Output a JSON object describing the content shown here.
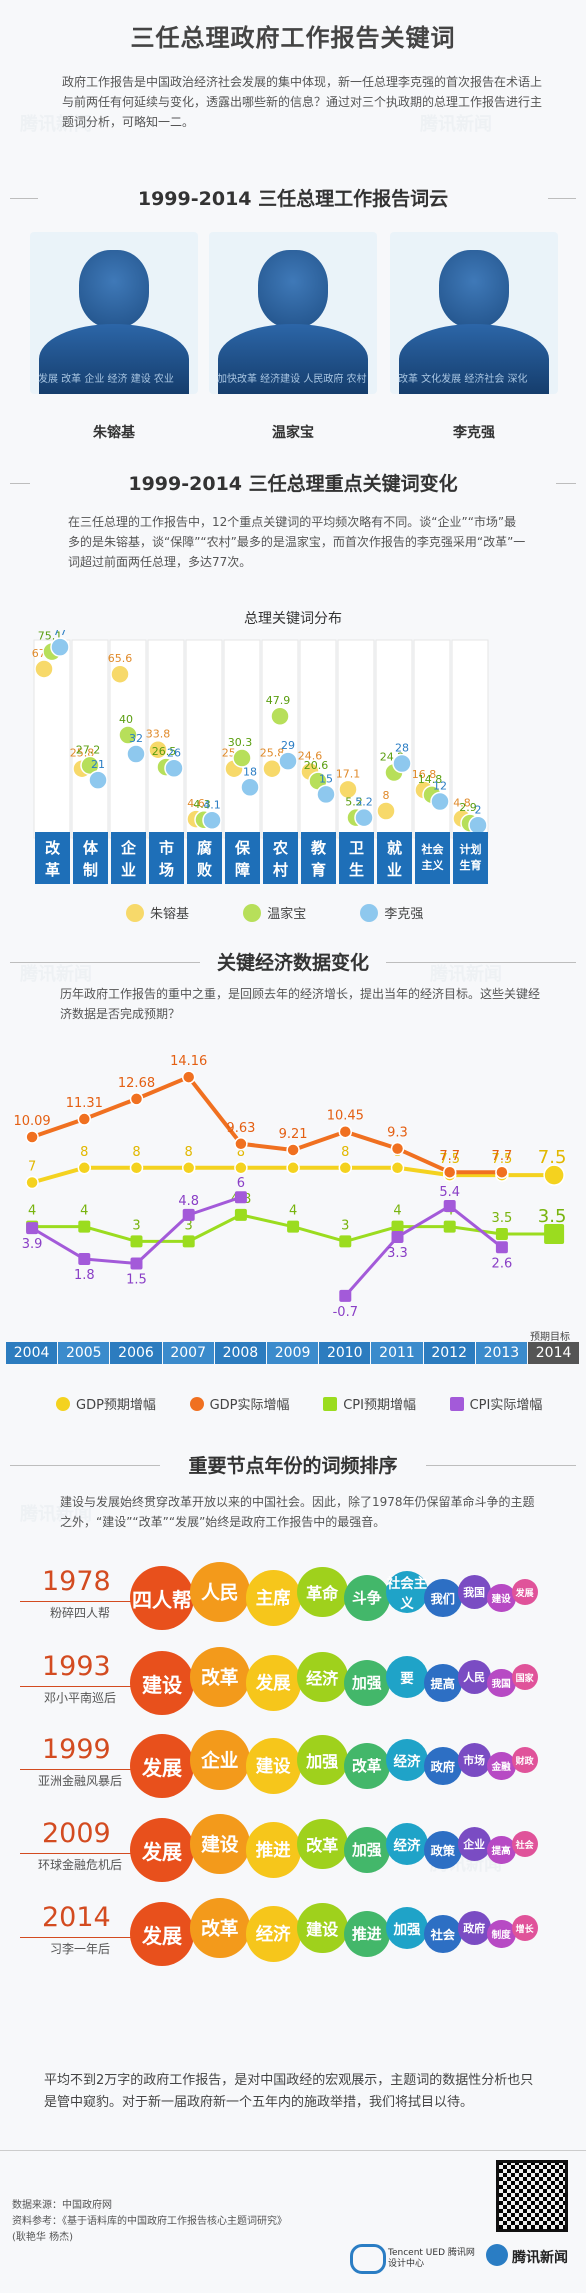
{
  "header": {
    "title": "三任总理政府工作报告关键词",
    "intro": "政府工作报告是中国政治经济社会发展的集中体现，新一任总理李克强的首次报告在术语上与前两任有何延续与变化，透露出哪些新的信息？通过对三个执政期的总理工作报告进行主题词分析，可略知一二。"
  },
  "section1": {
    "title": "1999-2014  三任总理工作报告词云",
    "premiers": [
      {
        "name": "朱镕基",
        "words": "发展 改革 企业 经济 建设 农业"
      },
      {
        "name": "温家宝",
        "words": "加快改革 经济建设 人民政府 农村"
      },
      {
        "name": "李克强",
        "words": "改革 文化发展 经济社会 深化"
      }
    ]
  },
  "section2": {
    "title": "1999-2014 三任总理重点关键词变化",
    "desc": "在三任总理的工作报告中，12个重点关键词的平均频次略有不同。谈“企业”“市场”最多的是朱镕基，谈“保障”“农村”最多的是温家宝，而首次作报告的李克强采用“改革”一词超过前面两任总理，多达77次。",
    "chart_title": "总理关键词分布"
  },
  "section3": {
    "title": "关键经济数据变化",
    "desc": "历年政府工作报告的重中之重，是回顾去年的经济增长，提出当年的经济目标。这些关键经济数据是否完成预期？",
    "target_label": "预期目标"
  },
  "section4": {
    "title": "重要节点年份的词频排序",
    "desc": "建设与发展始终贯穿改革开放以来的中国社会。因此，除了1978年仍保留革命斗争的主题之外，“建设”“改革”“发展”始终是政府工作报告中的最强音。",
    "rows": [
      {
        "year": "1978",
        "sub": "粉碎四人帮",
        "words": [
          "四人帮",
          "人民",
          "主席",
          "革命",
          "斗争",
          "社会主义",
          "我们",
          "我国",
          "建设",
          "发展"
        ]
      },
      {
        "year": "1993",
        "sub": "邓小平南巡后",
        "words": [
          "建设",
          "改革",
          "发展",
          "经济",
          "加强",
          "要",
          "提高",
          "人民",
          "我国",
          "国家"
        ]
      },
      {
        "year": "1999",
        "sub": "亚洲金融风暴后",
        "words": [
          "发展",
          "企业",
          "建设",
          "加强",
          "改革",
          "经济",
          "政府",
          "市场",
          "金融",
          "财政"
        ]
      },
      {
        "year": "2009",
        "sub": "环球金融危机后",
        "words": [
          "发展",
          "建设",
          "推进",
          "改革",
          "加强",
          "经济",
          "政策",
          "企业",
          "提高",
          "社会"
        ]
      },
      {
        "year": "2014",
        "sub": "习李一年后",
        "words": [
          "发展",
          "改革",
          "经济",
          "建设",
          "推进",
          "加强",
          "社会",
          "政府",
          "制度",
          "增长"
        ]
      }
    ]
  },
  "footer": {
    "closing": "平均不到2万字的政府工作报告，是对中国政经的宏观展示，主题词的数据性分析也只是管中窥豹。对于新一届政府新一个五年内的施政举措，我们将拭目以待。",
    "source": "数据来源：中国政府网",
    "reference": "资料参考：《基于语料库的中国政府工作报告核心主题词研究》",
    "credit": "(耿艳华 杨杰)",
    "brand1": "Tencent UED 腾讯网设计中心",
    "brand2": "腾讯新闻"
  },
  "colors": {
    "zhu": "#f7d96a",
    "wen": "#b7df5a",
    "li": "#8ec8ee",
    "gdp_target": "#f4d21f",
    "gdp_actual": "#f07020",
    "cpi_target": "#9bdc1f",
    "cpi_actual": "#a35ad9",
    "blue": "#2a7dc4"
  },
  "chart_data": [
    {
      "type": "scatter",
      "title": "总理关键词分布",
      "categories": [
        "改革",
        "体制",
        "企业",
        "市场",
        "腐败",
        "保障",
        "农村",
        "教育",
        "卫生",
        "就业",
        "社会主义",
        "计划生育"
      ],
      "series": [
        {
          "name": "朱镕基",
          "values": [
            67.8,
            25.8,
            65.6,
            33.8,
            4.6,
            25.8,
            25.8,
            24.6,
            17.1,
            8,
            16.8,
            4.8
          ]
        },
        {
          "name": "温家宝",
          "values": [
            75.1,
            27.2,
            40,
            26.5,
            4.3,
            30.3,
            47.9,
            20.6,
            5.2,
            24.2,
            14.8,
            2.9
          ]
        },
        {
          "name": "李克强",
          "values": [
            77,
            21,
            32,
            26,
            4.1,
            18,
            29,
            15,
            5.2,
            28,
            12,
            2
          ]
        }
      ]
    },
    {
      "type": "line",
      "title": "关键经济数据变化",
      "x": [
        "2004",
        "2005",
        "2006",
        "2007",
        "2008",
        "2009",
        "2010",
        "2011",
        "2012",
        "2013",
        "2014"
      ],
      "series": [
        {
          "name": "GDP预期增幅",
          "values": [
            7,
            8,
            8,
            8,
            8,
            8,
            8,
            8,
            7.5,
            7.5,
            7.5
          ]
        },
        {
          "name": "GDP实际增幅",
          "values": [
            10.09,
            11.31,
            12.68,
            14.16,
            9.63,
            9.21,
            10.45,
            9.3,
            7.7,
            7.7,
            null
          ]
        },
        {
          "name": "CPI预期增幅",
          "values": [
            4,
            4,
            3,
            3,
            4.8,
            4,
            3,
            4,
            4,
            3.5,
            3.5
          ]
        },
        {
          "name": "CPI实际增幅",
          "values": [
            3.9,
            1.8,
            1.5,
            4.8,
            6,
            null,
            -0.7,
            3.3,
            5.4,
            2.6,
            null
          ]
        }
      ]
    }
  ]
}
